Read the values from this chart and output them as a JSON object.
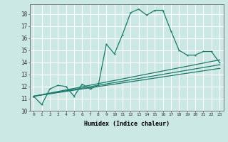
{
  "bg_color": "#cce8e4",
  "grid_color": "#ffffff",
  "line_color": "#1a7a6a",
  "xlabel": "Humidex (Indice chaleur)",
  "xlim": [
    -0.5,
    23.5
  ],
  "ylim": [
    10,
    18.8
  ],
  "yticks": [
    10,
    11,
    12,
    13,
    14,
    15,
    16,
    17,
    18
  ],
  "xticks": [
    0,
    1,
    2,
    3,
    4,
    5,
    6,
    7,
    8,
    9,
    10,
    11,
    12,
    13,
    14,
    15,
    16,
    17,
    18,
    19,
    20,
    21,
    22,
    23
  ],
  "lines": [
    {
      "x": [
        0,
        1,
        2,
        3,
        4,
        5,
        6,
        7,
        8,
        9,
        10,
        11,
        12,
        13,
        14,
        15,
        16,
        17,
        18,
        19,
        20,
        21,
        22,
        23
      ],
      "y": [
        11.2,
        10.5,
        11.8,
        12.1,
        12.0,
        11.2,
        12.2,
        11.8,
        12.1,
        15.5,
        14.7,
        16.3,
        18.1,
        18.4,
        17.9,
        18.3,
        18.3,
        16.6,
        15.0,
        14.6,
        14.6,
        14.9,
        14.9,
        14.0
      ]
    },
    {
      "x": [
        0,
        23
      ],
      "y": [
        11.2,
        14.2
      ]
    },
    {
      "x": [
        0,
        23
      ],
      "y": [
        11.2,
        13.8
      ]
    },
    {
      "x": [
        0,
        23
      ],
      "y": [
        11.2,
        13.5
      ]
    }
  ]
}
